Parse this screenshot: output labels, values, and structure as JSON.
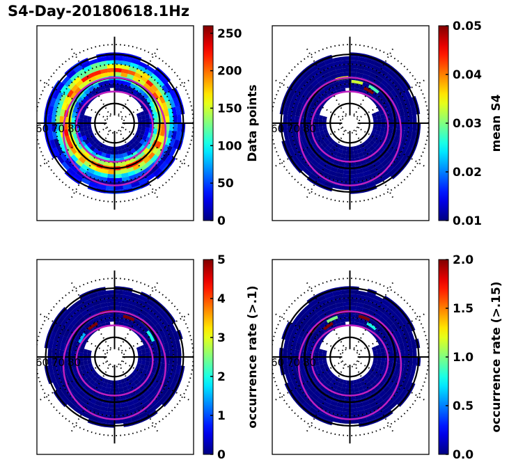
{
  "figure": {
    "title": "S4-Day-20180618.1Hz"
  },
  "chart_data": [
    {
      "type": "heatmap",
      "projection": "polar",
      "panel": "top-left",
      "title": "",
      "colorbar": {
        "label": "Data points",
        "range": [
          0,
          260
        ],
        "ticks": [
          "0",
          "50",
          "100",
          "150",
          "200",
          "250"
        ],
        "tick_values": [
          0,
          50,
          100,
          150,
          200,
          250
        ],
        "colormap": "jet"
      },
      "lat_labels": [
        "60",
        "70",
        "80"
      ],
      "lat_circles": [
        50,
        60,
        70,
        80,
        85
      ],
      "oval_color": "#c020c0",
      "description": "Ring of data coverage between ~55 and ~75 latitude; highest counts (~150-230) in a band around 65-70 latitude",
      "ring_profile": {
        "inner_value": 60,
        "mid_value": 150,
        "peak_value": 230,
        "outer_value": 30
      }
    },
    {
      "type": "heatmap",
      "projection": "polar",
      "panel": "top-right",
      "colorbar": {
        "label": "mean S4",
        "range": [
          0.01,
          0.05
        ],
        "ticks": [
          "0.01",
          "0.02",
          "0.03",
          "0.04",
          "0.05"
        ],
        "tick_values": [
          0.01,
          0.02,
          0.03,
          0.04,
          0.05
        ],
        "colormap": "jet"
      },
      "lat_labels": [
        "60",
        "70",
        "80"
      ],
      "description": "Mostly ~0.01 everywhere; a few elevated bins (0.03-0.05) on the dayside/top of the ring",
      "hotspots": [
        {
          "sector_deg": 100,
          "value": 0.035
        },
        {
          "sector_deg": 80,
          "value": 0.033
        },
        {
          "sector_deg": 60,
          "value": 0.05
        },
        {
          "sector_deg": 135,
          "value": 0.05
        },
        {
          "sector_deg": 55,
          "value": 0.028
        }
      ]
    },
    {
      "type": "heatmap",
      "projection": "polar",
      "panel": "bottom-left",
      "colorbar": {
        "label": "occurrence rate (>.1)",
        "range": [
          0,
          5
        ],
        "ticks": [
          "0",
          "1",
          "2",
          "3",
          "4",
          "5"
        ],
        "tick_values": [
          0,
          1,
          2,
          3,
          4,
          5
        ],
        "colormap": "jet"
      },
      "lat_labels": [
        "60",
        "70",
        "80"
      ],
      "description": "Near 0 everywhere, with high occurrence (up to 5) in the noon sector near 65-70 latitude",
      "hotspots": [
        {
          "sector_deg": 100,
          "value": 5
        },
        {
          "sector_deg": 70,
          "value": 5
        },
        {
          "sector_deg": 125,
          "value": 5
        },
        {
          "sector_deg": 45,
          "value": 3.5
        },
        {
          "sector_deg": 30,
          "value": 2
        },
        {
          "sector_deg": 150,
          "value": 1.5
        }
      ]
    },
    {
      "type": "heatmap",
      "projection": "polar",
      "panel": "bottom-right",
      "colorbar": {
        "label": "occurrence rate (>.15)",
        "range": [
          0,
          2
        ],
        "ticks": [
          "0.0",
          "0.5",
          "1.0",
          "1.5",
          "2.0"
        ],
        "tick_values": [
          0,
          0.5,
          1.0,
          1.5,
          2.0
        ],
        "colormap": "jet"
      },
      "lat_labels": [
        "60",
        "70",
        "80"
      ],
      "description": "Near 0 everywhere, with values up to 2 in the noon sector near 65-70 latitude",
      "hotspots": [
        {
          "sector_deg": 100,
          "value": 2
        },
        {
          "sector_deg": 70,
          "value": 2
        },
        {
          "sector_deg": 125,
          "value": 2
        },
        {
          "sector_deg": 140,
          "value": 1.6
        },
        {
          "sector_deg": 115,
          "value": 1.0
        },
        {
          "sector_deg": 55,
          "value": 0.8
        }
      ]
    }
  ]
}
